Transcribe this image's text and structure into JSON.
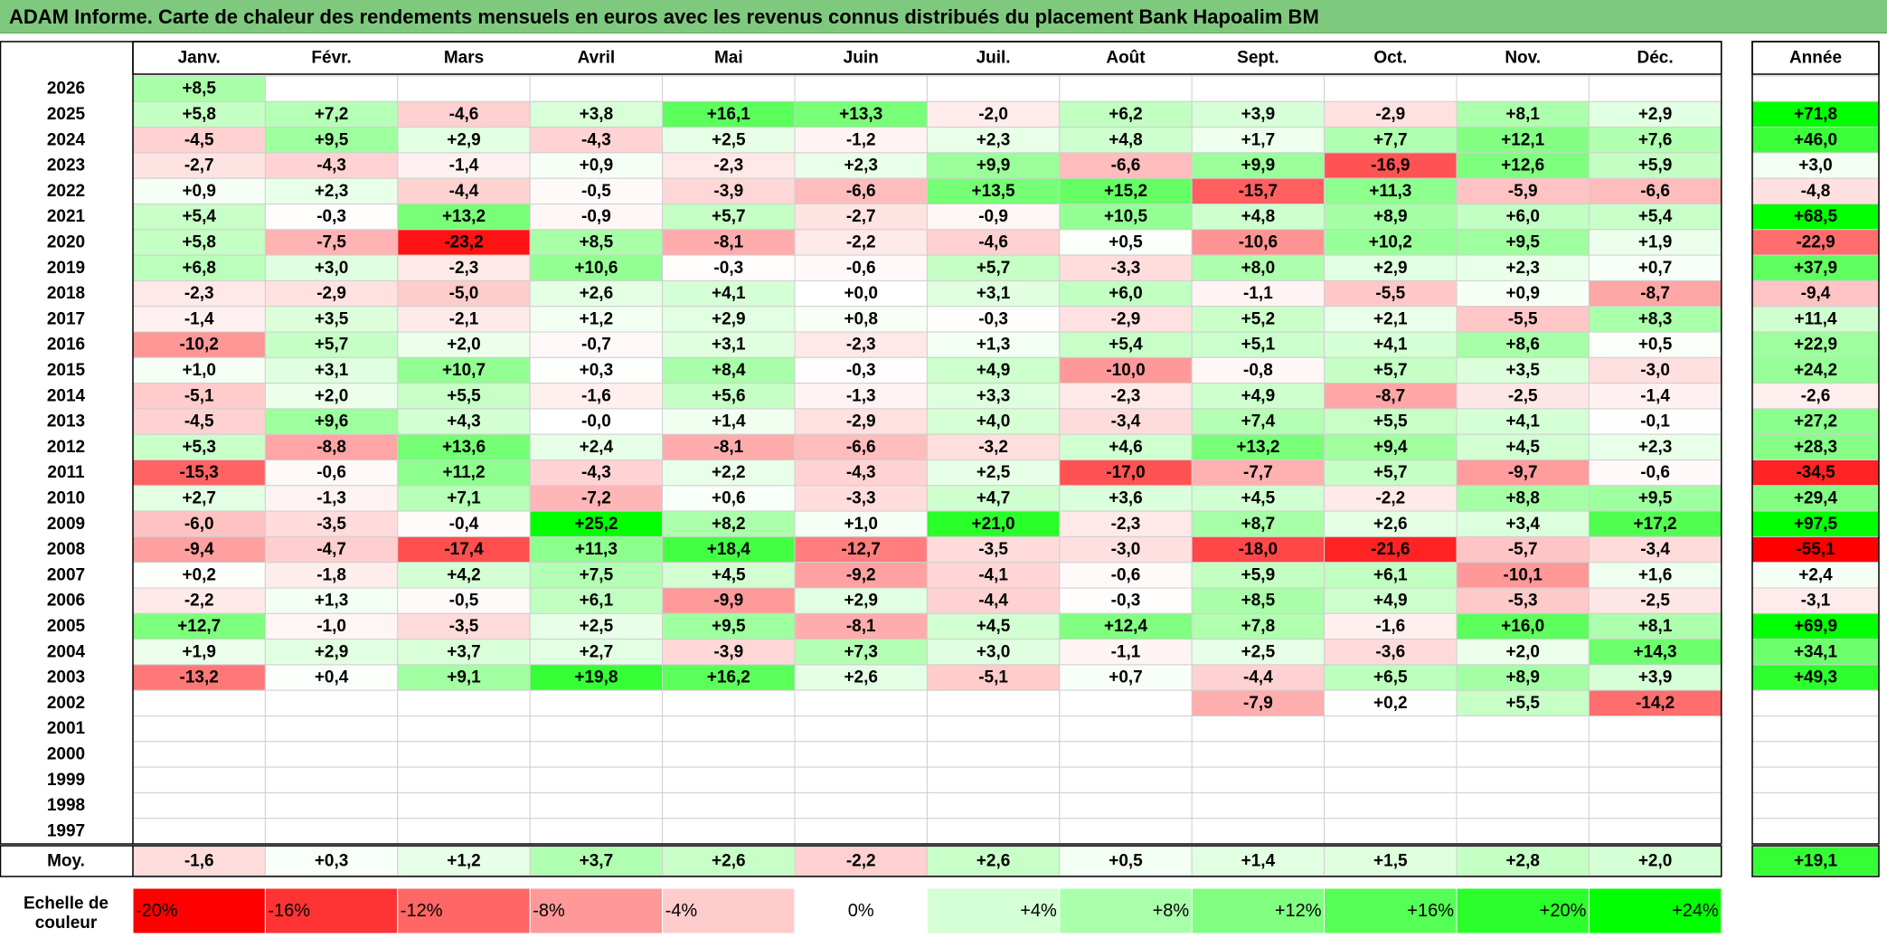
{
  "page": {
    "title": "ADAM Informe. Carte de chaleur des rendements mensuels en euros avec les revenus connus distribués du placement Bank Hapoalim BM"
  },
  "chart_data": {
    "type": "heatmap",
    "title": "ADAM Informe. Carte de chaleur des rendements mensuels en euros avec les revenus connus distribués du placement Bank Hapoalim BM",
    "months": [
      "Janv.",
      "Févr.",
      "Mars",
      "Avril",
      "Mai",
      "Juin",
      "Juil.",
      "Août",
      "Sept.",
      "Oct.",
      "Nov.",
      "Déc."
    ],
    "annual_label": "Année",
    "average_label": "Moy.",
    "rows": [
      {
        "year": "2026",
        "values": [
          "+8,5",
          "",
          "",
          "",
          "",
          "",
          "",
          "",
          "",
          "",
          "",
          ""
        ],
        "annual": ""
      },
      {
        "year": "2025",
        "values": [
          "+5,8",
          "+7,2",
          "-4,6",
          "+3,8",
          "+16,1",
          "+13,3",
          "-2,0",
          "+6,2",
          "+3,9",
          "-2,9",
          "+8,1",
          "+2,9"
        ],
        "annual": "+71,8"
      },
      {
        "year": "2024",
        "values": [
          "-4,5",
          "+9,5",
          "+2,9",
          "-4,3",
          "+2,5",
          "-1,2",
          "+2,3",
          "+4,8",
          "+1,7",
          "+7,7",
          "+12,1",
          "+7,6"
        ],
        "annual": "+46,0"
      },
      {
        "year": "2023",
        "values": [
          "-2,7",
          "-4,3",
          "-1,4",
          "+0,9",
          "-2,3",
          "+2,3",
          "+9,9",
          "-6,6",
          "+9,9",
          "-16,9",
          "+12,6",
          "+5,9"
        ],
        "annual": "+3,0"
      },
      {
        "year": "2022",
        "values": [
          "+0,9",
          "+2,3",
          "-4,4",
          "-0,5",
          "-3,9",
          "-6,6",
          "+13,5",
          "+15,2",
          "-15,7",
          "+11,3",
          "-5,9",
          "-6,6"
        ],
        "annual": "-4,8"
      },
      {
        "year": "2021",
        "values": [
          "+5,4",
          "-0,3",
          "+13,2",
          "-0,9",
          "+5,7",
          "-2,7",
          "-0,9",
          "+10,5",
          "+4,8",
          "+8,9",
          "+6,0",
          "+5,4"
        ],
        "annual": "+68,5"
      },
      {
        "year": "2020",
        "values": [
          "+5,8",
          "-7,5",
          "-23,2",
          "+8,5",
          "-8,1",
          "-2,2",
          "-4,6",
          "+0,5",
          "-10,6",
          "+10,2",
          "+9,5",
          "+1,9"
        ],
        "annual": "-22,9"
      },
      {
        "year": "2019",
        "values": [
          "+6,8",
          "+3,0",
          "-2,3",
          "+10,6",
          "-0,3",
          "-0,6",
          "+5,7",
          "-3,3",
          "+8,0",
          "+2,9",
          "+2,3",
          "+0,7"
        ],
        "annual": "+37,9"
      },
      {
        "year": "2018",
        "values": [
          "-2,3",
          "-2,9",
          "-5,0",
          "+2,6",
          "+4,1",
          "+0,0",
          "+3,1",
          "+6,0",
          "-1,1",
          "-5,5",
          "+0,9",
          "-8,7"
        ],
        "annual": "-9,4"
      },
      {
        "year": "2017",
        "values": [
          "-1,4",
          "+3,5",
          "-2,1",
          "+1,2",
          "+2,9",
          "+0,8",
          "-0,3",
          "-2,9",
          "+5,2",
          "+2,1",
          "-5,5",
          "+8,3"
        ],
        "annual": "+11,4"
      },
      {
        "year": "2016",
        "values": [
          "-10,2",
          "+5,7",
          "+2,0",
          "-0,7",
          "+3,1",
          "-2,3",
          "+1,3",
          "+5,4",
          "+5,1",
          "+4,1",
          "+8,6",
          "+0,5"
        ],
        "annual": "+22,9"
      },
      {
        "year": "2015",
        "values": [
          "+1,0",
          "+3,1",
          "+10,7",
          "+0,3",
          "+8,4",
          "-0,3",
          "+4,9",
          "-10,0",
          "-0,8",
          "+5,7",
          "+3,5",
          "-3,0"
        ],
        "annual": "+24,2"
      },
      {
        "year": "2014",
        "values": [
          "-5,1",
          "+2,0",
          "+5,5",
          "-1,6",
          "+5,6",
          "-1,3",
          "+3,3",
          "-2,3",
          "+4,9",
          "-8,7",
          "-2,5",
          "-1,4"
        ],
        "annual": "-2,6"
      },
      {
        "year": "2013",
        "values": [
          "-4,5",
          "+9,6",
          "+4,3",
          "-0,0",
          "+1,4",
          "-2,9",
          "+4,0",
          "-3,4",
          "+7,4",
          "+5,5",
          "+4,1",
          "-0,1"
        ],
        "annual": "+27,2"
      },
      {
        "year": "2012",
        "values": [
          "+5,3",
          "-8,8",
          "+13,6",
          "+2,4",
          "-8,1",
          "-6,6",
          "-3,2",
          "+4,6",
          "+13,2",
          "+9,4",
          "+4,5",
          "+2,3"
        ],
        "annual": "+28,3"
      },
      {
        "year": "2011",
        "values": [
          "-15,3",
          "-0,6",
          "+11,2",
          "-4,3",
          "+2,2",
          "-4,3",
          "+2,5",
          "-17,0",
          "-7,7",
          "+5,7",
          "-9,7",
          "-0,6"
        ],
        "annual": "-34,5"
      },
      {
        "year": "2010",
        "values": [
          "+2,7",
          "-1,3",
          "+7,1",
          "-7,2",
          "+0,6",
          "-3,3",
          "+4,7",
          "+3,6",
          "+4,5",
          "-2,2",
          "+8,8",
          "+9,5"
        ],
        "annual": "+29,4"
      },
      {
        "year": "2009",
        "values": [
          "-6,0",
          "-3,5",
          "-0,4",
          "+25,2",
          "+8,2",
          "+1,0",
          "+21,0",
          "-2,3",
          "+8,7",
          "+2,6",
          "+3,4",
          "+17,2"
        ],
        "annual": "+97,5"
      },
      {
        "year": "2008",
        "values": [
          "-9,4",
          "-4,7",
          "-17,4",
          "+11,3",
          "+18,4",
          "-12,7",
          "-3,5",
          "-3,0",
          "-18,0",
          "-21,6",
          "-5,7",
          "-3,4"
        ],
        "annual": "-55,1"
      },
      {
        "year": "2007",
        "values": [
          "+0,2",
          "-1,8",
          "+4,2",
          "+7,5",
          "+4,5",
          "-9,2",
          "-4,1",
          "-0,6",
          "+5,9",
          "+6,1",
          "-10,1",
          "+1,6"
        ],
        "annual": "+2,4"
      },
      {
        "year": "2006",
        "values": [
          "-2,2",
          "+1,3",
          "-0,5",
          "+6,1",
          "-9,9",
          "+2,9",
          "-4,4",
          "-0,3",
          "+8,5",
          "+4,9",
          "-5,3",
          "-2,5"
        ],
        "annual": "-3,1"
      },
      {
        "year": "2005",
        "values": [
          "+12,7",
          "-1,0",
          "-3,5",
          "+2,5",
          "+9,5",
          "-8,1",
          "+4,5",
          "+12,4",
          "+7,8",
          "-1,6",
          "+16,0",
          "+8,1"
        ],
        "annual": "+69,9"
      },
      {
        "year": "2004",
        "values": [
          "+1,9",
          "+2,9",
          "+3,7",
          "+2,7",
          "-3,9",
          "+7,3",
          "+3,0",
          "-1,1",
          "+2,5",
          "-3,6",
          "+2,0",
          "+14,3"
        ],
        "annual": "+34,1"
      },
      {
        "year": "2003",
        "values": [
          "-13,2",
          "+0,4",
          "+9,1",
          "+19,8",
          "+16,2",
          "+2,6",
          "-5,1",
          "+0,7",
          "-4,4",
          "+6,5",
          "+8,9",
          "+3,9"
        ],
        "annual": "+49,3"
      },
      {
        "year": "2002",
        "values": [
          "",
          "",
          "",
          "",
          "",
          "",
          "",
          "",
          "-7,9",
          "+0,2",
          "+5,5",
          "-14,2"
        ],
        "annual": ""
      },
      {
        "year": "2001",
        "values": [
          "",
          "",
          "",
          "",
          "",
          "",
          "",
          "",
          "",
          "",
          "",
          ""
        ],
        "annual": ""
      },
      {
        "year": "2000",
        "values": [
          "",
          "",
          "",
          "",
          "",
          "",
          "",
          "",
          "",
          "",
          "",
          ""
        ],
        "annual": ""
      },
      {
        "year": "1999",
        "values": [
          "",
          "",
          "",
          "",
          "",
          "",
          "",
          "",
          "",
          "",
          "",
          ""
        ],
        "annual": ""
      },
      {
        "year": "1998",
        "values": [
          "",
          "",
          "",
          "",
          "",
          "",
          "",
          "",
          "",
          "",
          "",
          ""
        ],
        "annual": ""
      },
      {
        "year": "1997",
        "values": [
          "",
          "",
          "",
          "",
          "",
          "",
          "",
          "",
          "",
          "",
          "",
          ""
        ],
        "annual": ""
      }
    ],
    "averages": [
      "-1,6",
      "+0,3",
      "+1,2",
      "+3,7",
      "+2,6",
      "-2,2",
      "+2,6",
      "+0,5",
      "+1,4",
      "+1,5",
      "+2,8",
      "+2,0"
    ],
    "average_annual": "+19,1",
    "color_scale": {
      "label": "Echelle de couleur",
      "stops": [
        "-20%",
        "-16%",
        "-12%",
        "-8%",
        "-4%",
        "0%",
        "+4%",
        "+8%",
        "+12%",
        "+16%",
        "+20%",
        "+24%"
      ],
      "stop_values": [
        -20,
        -16,
        -12,
        -8,
        -4,
        0,
        4,
        8,
        12,
        16,
        20,
        24
      ],
      "negative_color": "#ff0000",
      "neutral_color": "#ffffff",
      "positive_color": "#00ff00"
    }
  }
}
